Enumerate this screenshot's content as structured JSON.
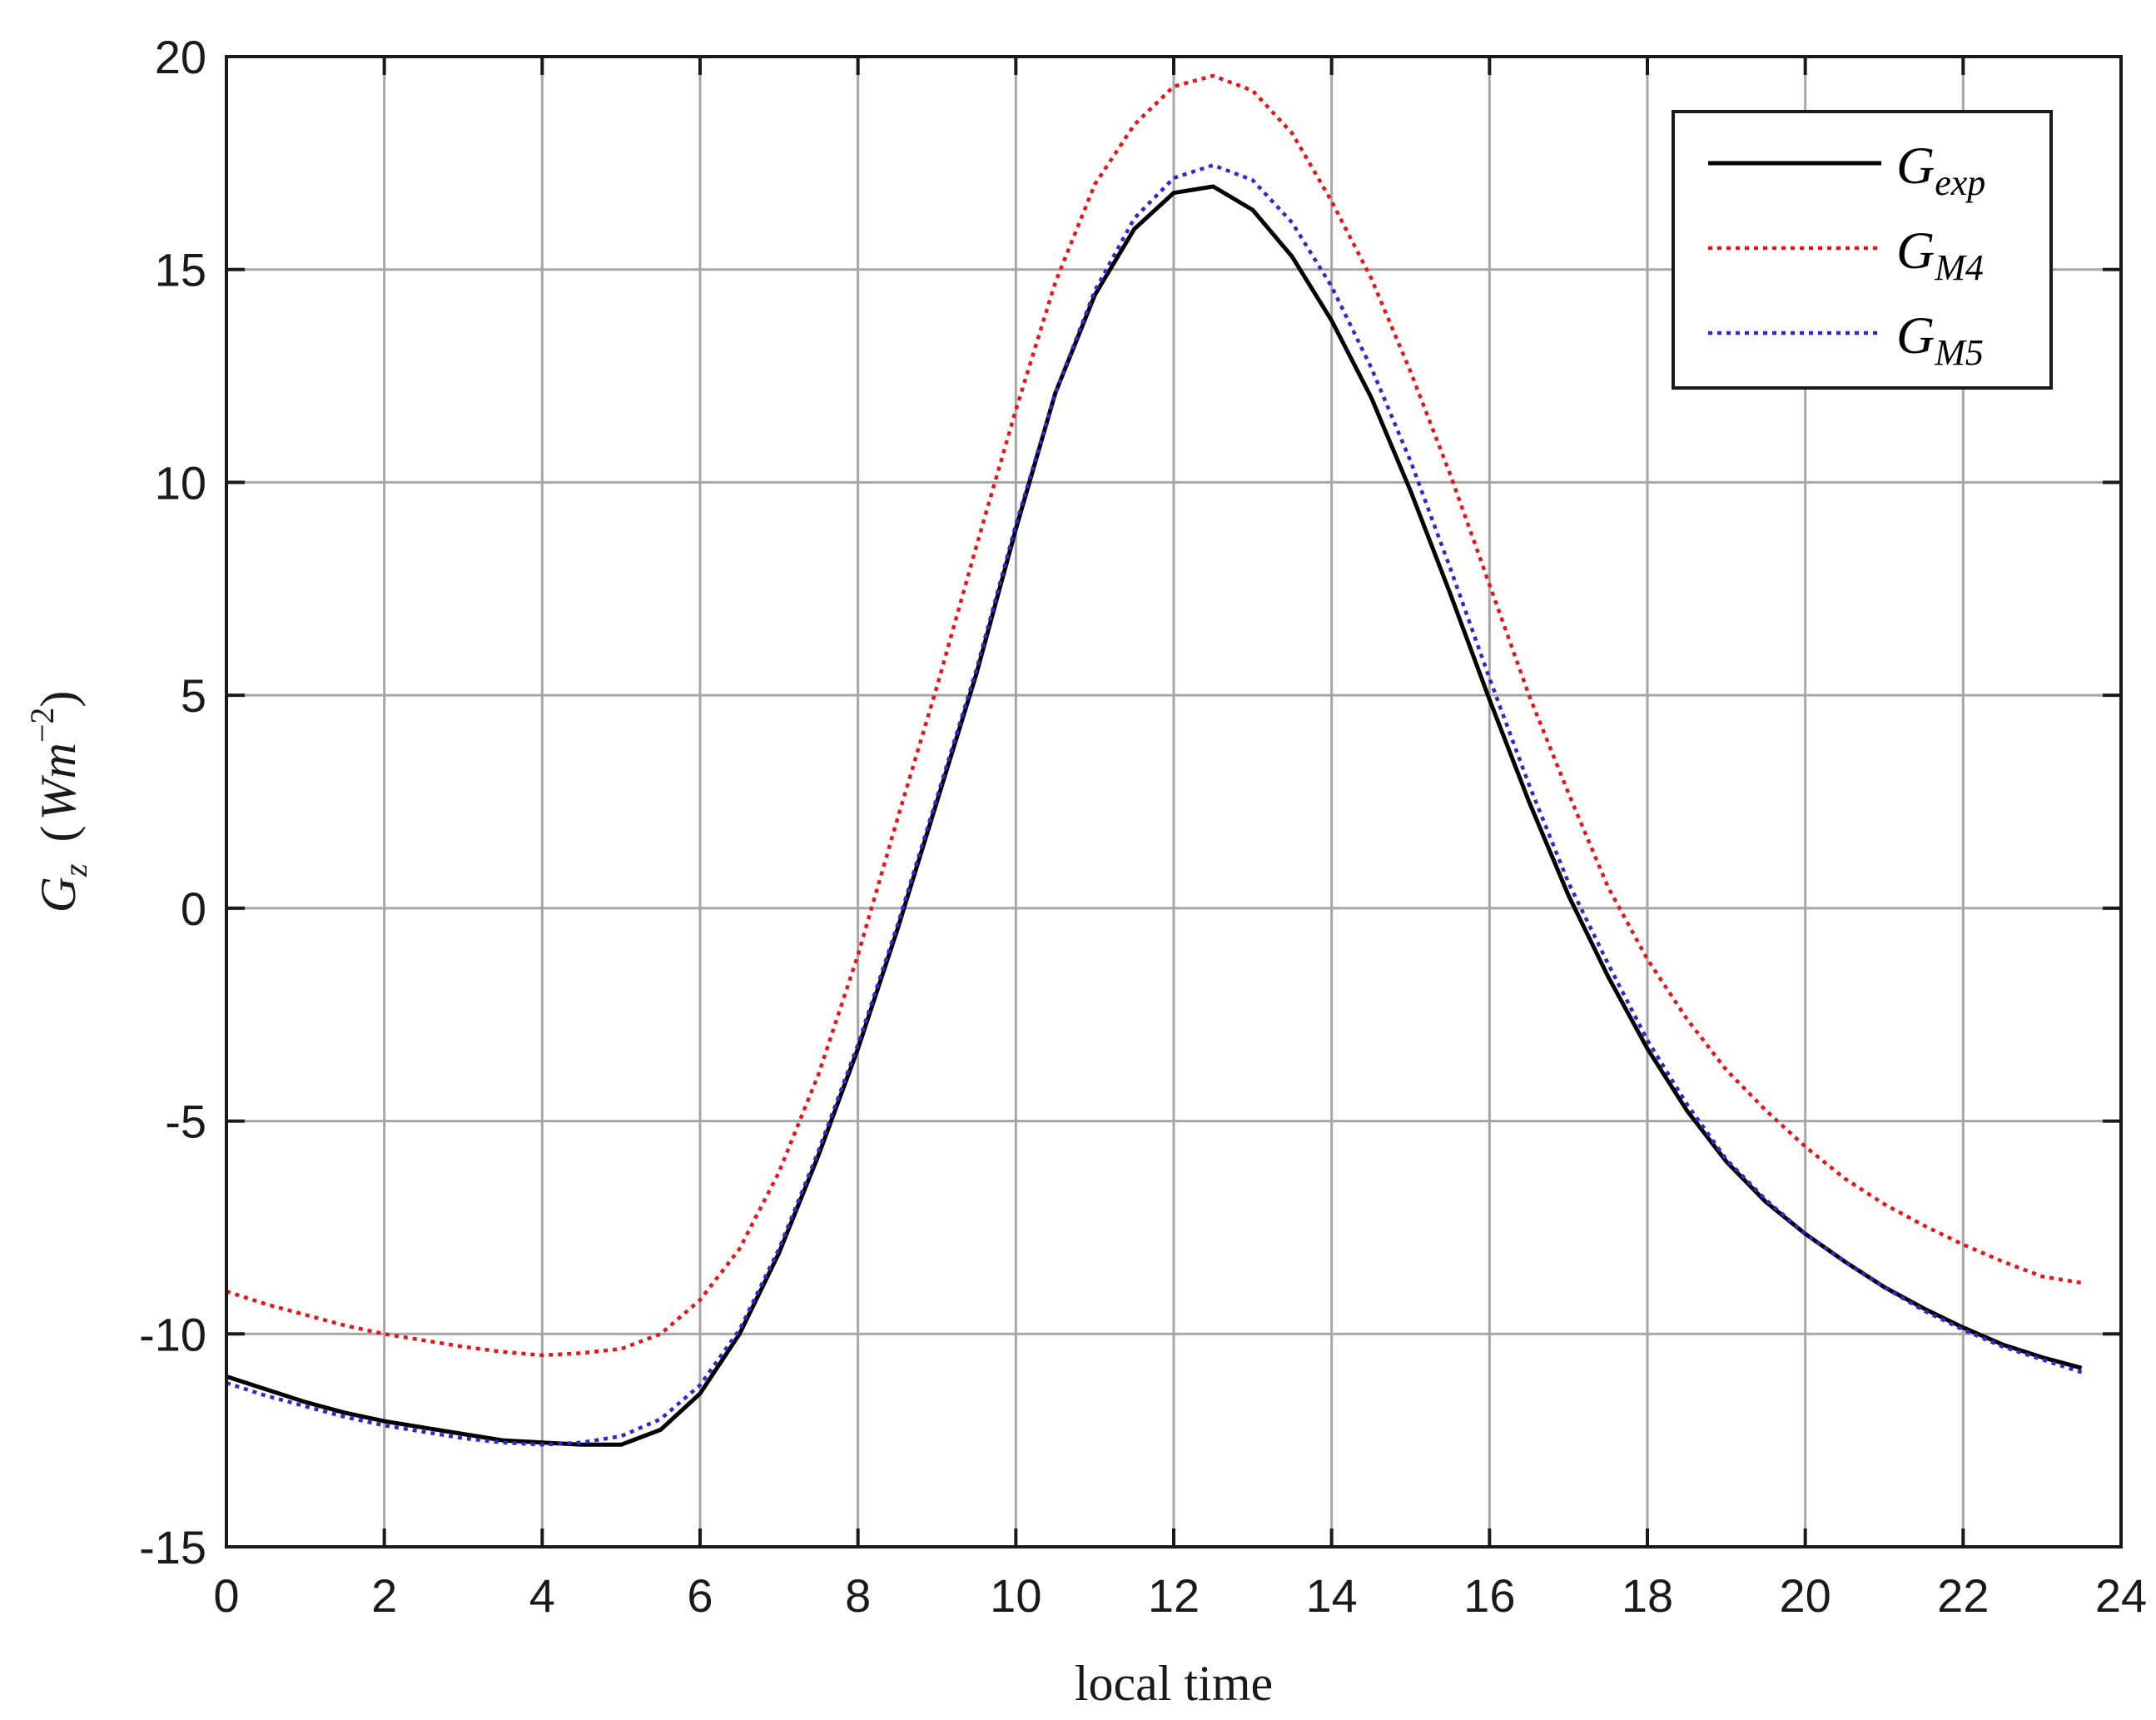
{
  "chart_data": {
    "type": "line",
    "title": "",
    "xlabel": "local time",
    "ylabel": {
      "main": "G",
      "main_sub": "z",
      "unit_open": "(",
      "unit_main": "Wm",
      "unit_exp": "−2",
      "unit_close": ")"
    },
    "xlim": [
      0,
      24
    ],
    "ylim": [
      -15,
      20
    ],
    "xticks": [
      0,
      2,
      4,
      6,
      8,
      10,
      12,
      14,
      16,
      18,
      20,
      22,
      24
    ],
    "yticks": [
      -15,
      -10,
      -5,
      0,
      5,
      10,
      15,
      20
    ],
    "grid": true,
    "legend_position": "top-right",
    "series": [
      {
        "label_main": "G",
        "label_sub": "exp",
        "color": "#000000",
        "style": "solid",
        "x": [
          0,
          0.5,
          1,
          1.5,
          2,
          2.5,
          3,
          3.5,
          4,
          4.5,
          5,
          5.5,
          6,
          6.5,
          7,
          7.5,
          8,
          8.5,
          9,
          9.5,
          10,
          10.5,
          11,
          11.5,
          12,
          12.5,
          13,
          13.5,
          14,
          14.5,
          15,
          15.5,
          16,
          16.5,
          17,
          17.5,
          18,
          18.5,
          19,
          19.5,
          20,
          20.5,
          21,
          21.5,
          22,
          22.5,
          23,
          23.5
        ],
        "y": [
          -11.0,
          -11.3,
          -11.6,
          -11.85,
          -12.05,
          -12.2,
          -12.35,
          -12.5,
          -12.55,
          -12.6,
          -12.6,
          -12.25,
          -11.4,
          -10.0,
          -8.1,
          -5.8,
          -3.3,
          -0.5,
          2.5,
          5.5,
          8.9,
          12.1,
          14.4,
          15.95,
          16.8,
          16.95,
          16.4,
          15.3,
          13.8,
          12.0,
          9.8,
          7.4,
          4.9,
          2.5,
          0.3,
          -1.6,
          -3.3,
          -4.75,
          -5.95,
          -6.9,
          -7.65,
          -8.3,
          -8.9,
          -9.4,
          -9.85,
          -10.25,
          -10.55,
          -10.8
        ]
      },
      {
        "label_main": "G",
        "label_sub": "M4",
        "color": "#e8141a",
        "style": "dotted",
        "x": [
          0,
          0.5,
          1,
          1.5,
          2,
          2.5,
          3,
          3.5,
          4,
          4.5,
          5,
          5.5,
          6,
          6.5,
          7,
          7.5,
          8,
          8.5,
          9,
          9.5,
          10,
          10.5,
          11,
          11.5,
          12,
          12.5,
          13,
          13.5,
          14,
          14.5,
          15,
          15.5,
          16,
          16.5,
          17,
          17.5,
          18,
          18.5,
          19,
          19.5,
          20,
          20.5,
          21,
          21.5,
          22,
          22.5,
          23,
          23.5
        ],
        "y": [
          -9.0,
          -9.3,
          -9.55,
          -9.8,
          -10.0,
          -10.15,
          -10.3,
          -10.42,
          -10.5,
          -10.45,
          -10.35,
          -10.0,
          -9.2,
          -8.0,
          -6.2,
          -3.9,
          -1.1,
          2.1,
          5.2,
          8.5,
          11.7,
          14.7,
          17.0,
          18.4,
          19.3,
          19.55,
          19.2,
          18.2,
          16.6,
          14.8,
          12.6,
          10.2,
          7.6,
          5.0,
          2.7,
          0.5,
          -1.2,
          -2.6,
          -3.8,
          -4.75,
          -5.6,
          -6.35,
          -6.95,
          -7.45,
          -7.9,
          -8.3,
          -8.65,
          -8.8
        ]
      },
      {
        "label_main": "G",
        "label_sub": "M5",
        "color": "#2a2ad0",
        "style": "dotted",
        "x": [
          0,
          0.5,
          1,
          1.5,
          2,
          2.5,
          3,
          3.5,
          4,
          4.5,
          5,
          5.5,
          6,
          6.5,
          7,
          7.5,
          8,
          8.5,
          9,
          9.5,
          10,
          10.5,
          11,
          11.5,
          12,
          12.5,
          13,
          13.5,
          14,
          14.5,
          15,
          15.5,
          16,
          16.5,
          17,
          17.5,
          18,
          18.5,
          19,
          19.5,
          20,
          20.5,
          21,
          21.5,
          22,
          22.5,
          23,
          23.5
        ],
        "y": [
          -11.15,
          -11.45,
          -11.7,
          -11.95,
          -12.15,
          -12.3,
          -12.45,
          -12.55,
          -12.6,
          -12.55,
          -12.4,
          -12.0,
          -11.2,
          -9.9,
          -8.0,
          -5.7,
          -3.2,
          -0.4,
          2.6,
          5.6,
          9.0,
          12.1,
          14.5,
          16.2,
          17.15,
          17.45,
          17.1,
          16.1,
          14.6,
          12.7,
          10.5,
          8.0,
          5.4,
          2.9,
          0.6,
          -1.3,
          -3.1,
          -4.6,
          -5.9,
          -6.85,
          -7.65,
          -8.3,
          -8.9,
          -9.45,
          -9.9,
          -10.3,
          -10.6,
          -10.9
        ]
      }
    ]
  }
}
